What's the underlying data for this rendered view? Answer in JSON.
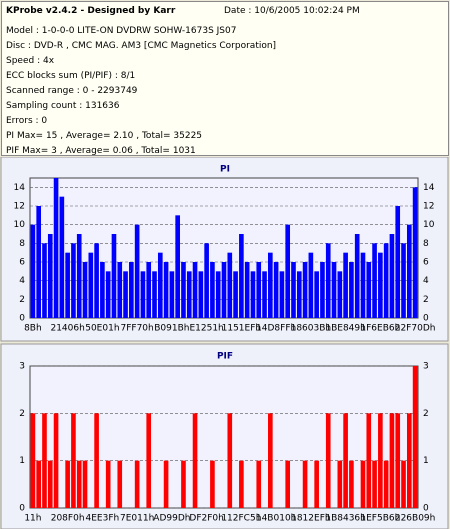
{
  "header": {
    "title": "KProbe v2.4.2 - Designed by Karr",
    "date": "Date : 10/6/2005 10:02:24 PM",
    "lines": [
      "Model : 1-0-0-0 LITE-ON DVDRW SOHW-1673S JS07",
      "Disc : DVD-R , CMC MAG. AM3 [CMC Magnetics Corporation]",
      "Speed : 4x",
      "ECC blocks sum (PI/PIF) : 8/1",
      "Scanned range : 0 - 2293749",
      "Sampling count : 131636",
      "Errors : 0",
      "PI Max= 15 , Average= 2.10 , Total= 35225",
      "PIF Max= 3 , Average= 0.06 , Total= 1031"
    ]
  },
  "chart_data": [
    {
      "type": "bar",
      "title": "PI",
      "color": "#0000ff",
      "grid": true,
      "ylim": [
        0,
        15
      ],
      "yticks": [
        0,
        2,
        4,
        6,
        8,
        10,
        12,
        14
      ],
      "categories": [
        "8Bh",
        null,
        null,
        null,
        null,
        null,
        "21406h",
        null,
        null,
        null,
        null,
        null,
        "50E01h",
        null,
        null,
        null,
        null,
        null,
        "7FF70h",
        null,
        null,
        null,
        null,
        null,
        "B091Bh",
        null,
        null,
        null,
        null,
        null,
        "E1251h",
        null,
        null,
        null,
        null,
        null,
        "1151EFh",
        null,
        null,
        null,
        null,
        null,
        "14D8FFh",
        null,
        null,
        null,
        null,
        null,
        "18603Bh",
        null,
        null,
        null,
        null,
        null,
        "1BE849h",
        null,
        null,
        null,
        null,
        null,
        "1F6EB6h",
        null,
        null,
        null,
        null,
        null,
        "22F70Dh"
      ],
      "values": [
        10,
        12,
        8,
        9,
        15,
        13,
        7,
        8,
        9,
        6,
        7,
        8,
        6,
        5,
        9,
        6,
        5,
        6,
        10,
        5,
        6,
        5,
        7,
        6,
        5,
        11,
        6,
        5,
        6,
        5,
        8,
        6,
        5,
        6,
        7,
        5,
        9,
        6,
        5,
        6,
        5,
        7,
        6,
        5,
        10,
        6,
        5,
        6,
        7,
        5,
        6,
        8,
        6,
        5,
        7,
        6,
        9,
        7,
        6,
        8,
        7,
        8,
        9,
        12,
        8,
        10,
        14
      ]
    },
    {
      "type": "bar",
      "title": "PIF",
      "color": "#ff0000",
      "grid": true,
      "ylim": [
        0,
        3
      ],
      "yticks": [
        0,
        1,
        2,
        3
      ],
      "categories": [
        "11h",
        null,
        null,
        null,
        null,
        null,
        "208F0h",
        null,
        null,
        null,
        null,
        null,
        "4EE3Fh",
        null,
        null,
        null,
        null,
        null,
        "7E011h",
        null,
        null,
        null,
        null,
        null,
        "AD99Dh",
        null,
        null,
        null,
        null,
        null,
        "DF2F0h",
        null,
        null,
        null,
        null,
        null,
        "112FC5h",
        null,
        null,
        null,
        null,
        null,
        "14B010h",
        null,
        null,
        null,
        null,
        null,
        "1812EFh",
        null,
        null,
        null,
        null,
        null,
        "1B8436h",
        null,
        null,
        null,
        null,
        null,
        "1EF5B6h",
        null,
        null,
        null,
        null,
        null,
        "226B09h"
      ],
      "values": [
        2,
        1,
        2,
        1,
        2,
        0,
        1,
        2,
        1,
        1,
        0,
        2,
        0,
        1,
        0,
        1,
        0,
        0,
        1,
        0,
        2,
        0,
        0,
        1,
        0,
        0,
        1,
        0,
        2,
        0,
        0,
        1,
        0,
        0,
        2,
        0,
        1,
        0,
        0,
        1,
        0,
        2,
        0,
        0,
        1,
        0,
        0,
        1,
        0,
        1,
        0,
        2,
        0,
        1,
        2,
        1,
        0,
        1,
        2,
        1,
        2,
        1,
        2,
        2,
        1,
        2,
        3
      ]
    }
  ]
}
